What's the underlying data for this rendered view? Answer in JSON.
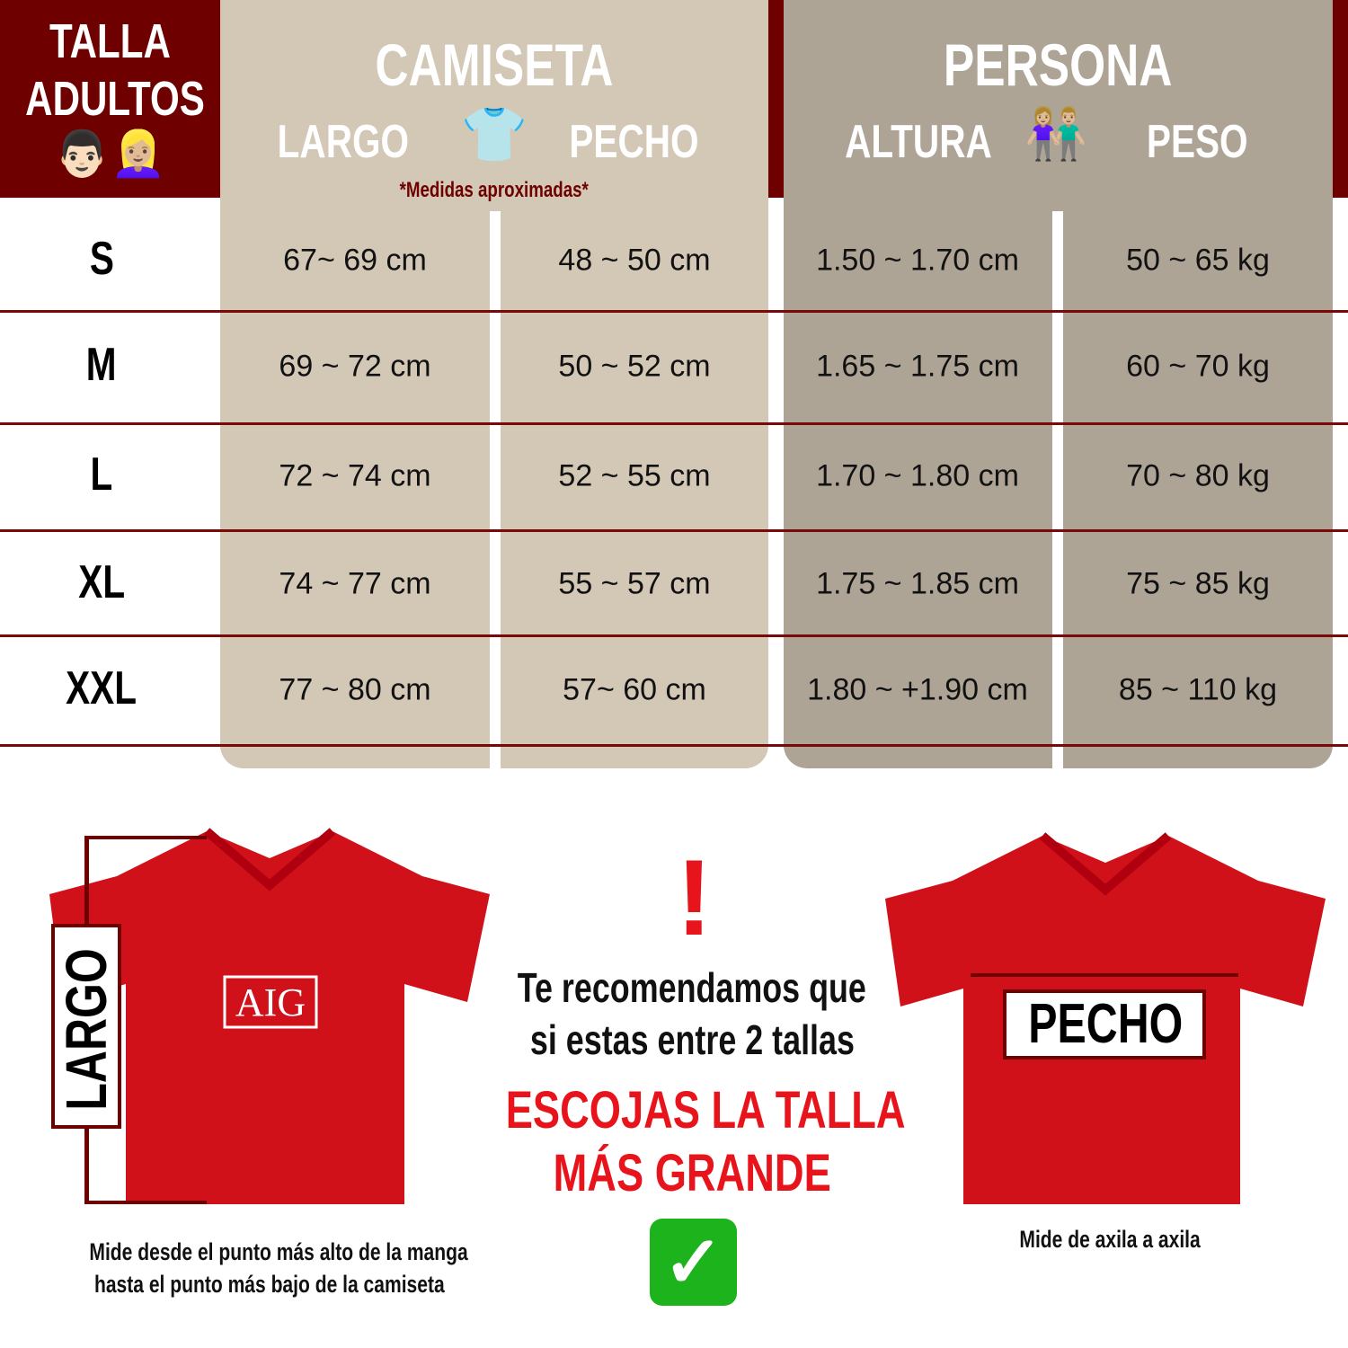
{
  "header": {
    "title_line1": "TALLA",
    "title_line2": "ADULTOS",
    "title_icons": "👨🏻👱🏼‍♀️",
    "camiseta": "CAMISETA",
    "largo": "LARGO",
    "pecho": "PECHO",
    "shirt_icon": "👕",
    "note": "*Medidas aproximadas*",
    "persona": "PERSONA",
    "altura": "ALTURA",
    "couple_icon": "👫🏼",
    "peso": "PESO"
  },
  "rows": [
    {
      "size": "S",
      "largo": "67~ 69 cm",
      "pecho": "48 ~ 50 cm",
      "altura": "1.50 ~ 1.70 cm",
      "peso": "50 ~ 65 kg"
    },
    {
      "size": "M",
      "largo": "69 ~ 72 cm",
      "pecho": "50 ~ 52 cm",
      "altura": "1.65 ~ 1.75 cm",
      "peso": "60 ~ 70 kg"
    },
    {
      "size": "L",
      "largo": "72 ~ 74 cm",
      "pecho": "52 ~ 55 cm",
      "altura": "1.70 ~ 1.80 cm",
      "peso": "70 ~ 80 kg"
    },
    {
      "size": "XL",
      "largo": "74 ~ 77 cm",
      "pecho": "55 ~ 57 cm",
      "altura": "1.75 ~ 1.85 cm",
      "peso": "75 ~ 85 kg"
    },
    {
      "size": "XXL",
      "largo": "77 ~ 80 cm",
      "pecho": "57~ 60 cm",
      "altura": "1.80 ~ +1.90 cm",
      "peso": "85 ~ 110 kg"
    }
  ],
  "bottom": {
    "largo_label": "LARGO",
    "pecho_label": "PECHO",
    "shirt_sponsor": "AIG",
    "largo_desc_1": "Mide desde el punto más alto de la manga",
    "largo_desc_2": "hasta el punto más bajo de la camiseta",
    "pecho_desc": "Mide de axila a axila",
    "exclamation": "!",
    "rec_1": "Te recomendamos que",
    "rec_2": "si estas entre 2 tallas",
    "cta_1": "ESCOJAS LA TALLA",
    "cta_2": "MÁS GRANDE",
    "check": "✓"
  },
  "colors": {
    "dark_red": "#6f0000",
    "camiseta_band": "#d3c7b6",
    "persona_band": "#ada496",
    "cta_red": "#e8141c",
    "check_green": "#1db31d"
  }
}
